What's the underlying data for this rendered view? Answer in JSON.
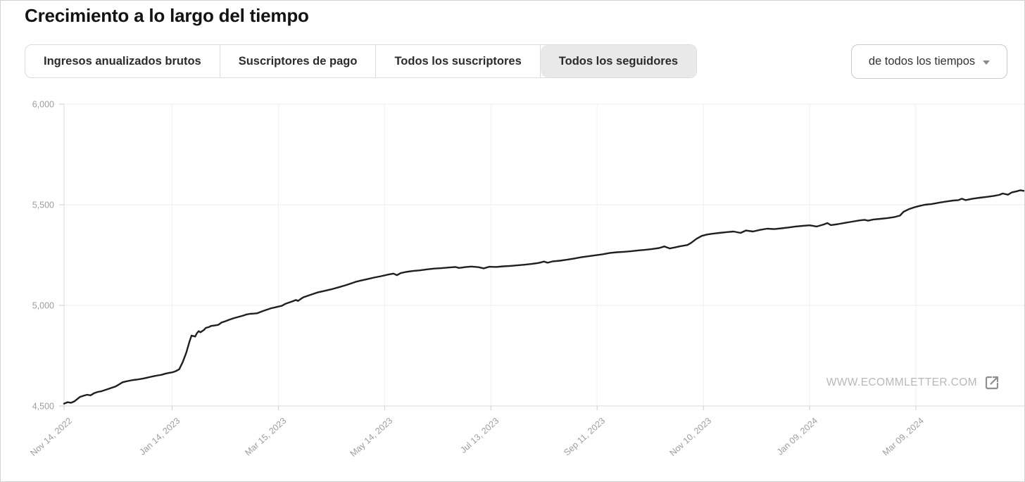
{
  "page": {
    "title": "Crecimiento a lo largo del tiempo"
  },
  "tabs": [
    {
      "label": "Ingresos anualizados brutos",
      "selected": false
    },
    {
      "label": "Suscriptores de pago",
      "selected": false
    },
    {
      "label": "Todos los suscriptores",
      "selected": false
    },
    {
      "label": "Todos los seguidores",
      "selected": true
    }
  ],
  "range_selector": {
    "label": "de todos los tiempos"
  },
  "watermark": {
    "text": "WWW.ECOMMLETTER.COM",
    "icon": "external-link-icon"
  },
  "colors": {
    "title": "#131313",
    "tab_text": "#2b2b2b",
    "tab_border": "#dcdcdc",
    "tab_selected_bg": "#e9e9e9",
    "dropdown_border": "#c9c9c9",
    "axis_label": "#9d9d9d",
    "gridline": "#ededed",
    "gridline_vertical": "#f1f1f1",
    "axis_line": "#d8d8d8",
    "tick": "#cdcdcd",
    "line": "#1f1f1f",
    "watermark": "#b8b8b8",
    "watermark_icon": "#8f8f8f",
    "frame_border": "#d2d2d2"
  },
  "chart_data": {
    "type": "line",
    "title": "Crecimiento a lo largo del tiempo",
    "legend": "none",
    "grid": true,
    "line_color": "#1f1f1f",
    "x_axis": {
      "tick_labels": [
        "Nov 14, 2022",
        "Jan 14, 2023",
        "Mar 15, 2023",
        "May 14, 2023",
        "Jul 13, 2023",
        "Sep 11, 2023",
        "Nov 10, 2023",
        "Jan 09, 2024",
        "Mar 09, 2024"
      ],
      "tick_positions_days": [
        0,
        61,
        121,
        181,
        241,
        301,
        361,
        421,
        481
      ],
      "domain_days": [
        0,
        543
      ]
    },
    "y_axis": {
      "ticks": [
        4500,
        5000,
        5500,
        6000
      ],
      "tick_labels": [
        "4,500",
        "5,000",
        "5,500",
        "6,000"
      ],
      "range": [
        4500,
        6000
      ]
    },
    "series": [
      {
        "name": "Todos los seguidores",
        "approx_start_value": 4512,
        "approx_end_value": 5572,
        "points": [
          [
            0,
            4512
          ],
          [
            2,
            4519
          ],
          [
            4,
            4516
          ],
          [
            6,
            4524
          ],
          [
            9,
            4545
          ],
          [
            11,
            4551
          ],
          [
            13,
            4556
          ],
          [
            15,
            4553
          ],
          [
            17,
            4564
          ],
          [
            19,
            4570
          ],
          [
            21,
            4573
          ],
          [
            23,
            4579
          ],
          [
            25,
            4585
          ],
          [
            27,
            4591
          ],
          [
            29,
            4597
          ],
          [
            31,
            4607
          ],
          [
            33,
            4618
          ],
          [
            35,
            4622
          ],
          [
            37,
            4626
          ],
          [
            39,
            4629
          ],
          [
            41,
            4631
          ],
          [
            43,
            4634
          ],
          [
            45,
            4637
          ],
          [
            47,
            4641
          ],
          [
            49,
            4645
          ],
          [
            51,
            4649
          ],
          [
            53,
            4652
          ],
          [
            55,
            4655
          ],
          [
            57,
            4660
          ],
          [
            59,
            4664
          ],
          [
            61,
            4667
          ],
          [
            63,
            4673
          ],
          [
            65,
            4682
          ],
          [
            66,
            4700
          ],
          [
            67,
            4718
          ],
          [
            68,
            4742
          ],
          [
            69,
            4765
          ],
          [
            70,
            4795
          ],
          [
            71,
            4825
          ],
          [
            72,
            4850
          ],
          [
            74,
            4845
          ],
          [
            75,
            4862
          ],
          [
            76,
            4872
          ],
          [
            77,
            4866
          ],
          [
            79,
            4878
          ],
          [
            80,
            4888
          ],
          [
            82,
            4893
          ],
          [
            83,
            4898
          ],
          [
            85,
            4900
          ],
          [
            87,
            4903
          ],
          [
            89,
            4915
          ],
          [
            91,
            4921
          ],
          [
            93,
            4928
          ],
          [
            95,
            4934
          ],
          [
            97,
            4939
          ],
          [
            99,
            4944
          ],
          [
            101,
            4949
          ],
          [
            103,
            4955
          ],
          [
            105,
            4958
          ],
          [
            107,
            4959
          ],
          [
            109,
            4961
          ],
          [
            111,
            4968
          ],
          [
            113,
            4974
          ],
          [
            115,
            4980
          ],
          [
            117,
            4986
          ],
          [
            119,
            4990
          ],
          [
            121,
            4994
          ],
          [
            123,
            4998
          ],
          [
            125,
            5008
          ],
          [
            127,
            5014
          ],
          [
            129,
            5020
          ],
          [
            131,
            5027
          ],
          [
            132,
            5022
          ],
          [
            135,
            5040
          ],
          [
            139,
            5052
          ],
          [
            143,
            5064
          ],
          [
            147,
            5072
          ],
          [
            151,
            5080
          ],
          [
            155,
            5090
          ],
          [
            159,
            5100
          ],
          [
            163,
            5112
          ],
          [
            165,
            5118
          ],
          [
            167,
            5122
          ],
          [
            171,
            5130
          ],
          [
            175,
            5138
          ],
          [
            179,
            5145
          ],
          [
            183,
            5153
          ],
          [
            186,
            5158
          ],
          [
            188,
            5150
          ],
          [
            190,
            5160
          ],
          [
            193,
            5166
          ],
          [
            197,
            5171
          ],
          [
            201,
            5174
          ],
          [
            205,
            5179
          ],
          [
            209,
            5183
          ],
          [
            213,
            5185
          ],
          [
            217,
            5188
          ],
          [
            221,
            5191
          ],
          [
            223,
            5186
          ],
          [
            227,
            5191
          ],
          [
            230,
            5193
          ],
          [
            234,
            5190
          ],
          [
            237,
            5184
          ],
          [
            240,
            5192
          ],
          [
            244,
            5191
          ],
          [
            248,
            5194
          ],
          [
            252,
            5196
          ],
          [
            256,
            5199
          ],
          [
            260,
            5202
          ],
          [
            264,
            5206
          ],
          [
            268,
            5211
          ],
          [
            271,
            5218
          ],
          [
            273,
            5212
          ],
          [
            276,
            5219
          ],
          [
            280,
            5222
          ],
          [
            284,
            5227
          ],
          [
            288,
            5233
          ],
          [
            292,
            5239
          ],
          [
            296,
            5244
          ],
          [
            300,
            5249
          ],
          [
            304,
            5254
          ],
          [
            308,
            5260
          ],
          [
            312,
            5264
          ],
          [
            316,
            5266
          ],
          [
            320,
            5269
          ],
          [
            324,
            5273
          ],
          [
            328,
            5276
          ],
          [
            332,
            5280
          ],
          [
            336,
            5285
          ],
          [
            339,
            5293
          ],
          [
            342,
            5283
          ],
          [
            345,
            5288
          ],
          [
            348,
            5294
          ],
          [
            352,
            5300
          ],
          [
            354,
            5310
          ],
          [
            357,
            5330
          ],
          [
            360,
            5345
          ],
          [
            363,
            5352
          ],
          [
            366,
            5356
          ],
          [
            370,
            5360
          ],
          [
            374,
            5364
          ],
          [
            378,
            5367
          ],
          [
            382,
            5360
          ],
          [
            385,
            5372
          ],
          [
            389,
            5367
          ],
          [
            393,
            5375
          ],
          [
            397,
            5381
          ],
          [
            401,
            5379
          ],
          [
            405,
            5383
          ],
          [
            409,
            5387
          ],
          [
            413,
            5392
          ],
          [
            417,
            5395
          ],
          [
            421,
            5398
          ],
          [
            425,
            5392
          ],
          [
            429,
            5402
          ],
          [
            431,
            5409
          ],
          [
            433,
            5399
          ],
          [
            437,
            5404
          ],
          [
            441,
            5410
          ],
          [
            445,
            5416
          ],
          [
            449,
            5422
          ],
          [
            452,
            5425
          ],
          [
            454,
            5421
          ],
          [
            457,
            5427
          ],
          [
            461,
            5430
          ],
          [
            465,
            5434
          ],
          [
            469,
            5439
          ],
          [
            472,
            5446
          ],
          [
            474,
            5465
          ],
          [
            477,
            5478
          ],
          [
            480,
            5487
          ],
          [
            483,
            5494
          ],
          [
            486,
            5500
          ],
          [
            490,
            5504
          ],
          [
            494,
            5510
          ],
          [
            498,
            5516
          ],
          [
            502,
            5521
          ],
          [
            505,
            5523
          ],
          [
            507,
            5530
          ],
          [
            509,
            5523
          ],
          [
            513,
            5530
          ],
          [
            517,
            5535
          ],
          [
            521,
            5539
          ],
          [
            525,
            5544
          ],
          [
            528,
            5549
          ],
          [
            530,
            5556
          ],
          [
            533,
            5550
          ],
          [
            535,
            5561
          ],
          [
            538,
            5567
          ],
          [
            540,
            5572
          ],
          [
            542,
            5569
          ],
          [
            543,
            5572
          ]
        ]
      }
    ]
  }
}
